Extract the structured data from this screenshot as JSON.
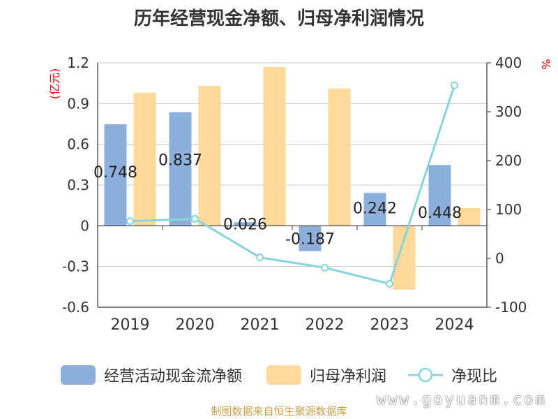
{
  "title": "历年经营现金净额、归母净利润情况",
  "source": "制图数据来自恒生聚源数据库",
  "watermark": "www.goyuanm.com",
  "chart_data": {
    "type": "bar",
    "categories": [
      "2019",
      "2020",
      "2021",
      "2022",
      "2023",
      "2024"
    ],
    "left_axis": {
      "label": "(亿元)",
      "ylim": [
        -0.6,
        1.2
      ],
      "ticks": [
        "1.2",
        "0.9",
        "0.6",
        "0.3",
        "0",
        "-0.3",
        "-0.6"
      ]
    },
    "right_axis": {
      "label": "%",
      "ylim": [
        -100,
        400
      ],
      "ticks": [
        "400",
        "300",
        "200",
        "100",
        "0",
        "-100"
      ]
    },
    "series": [
      {
        "name": "经营活动现金流净额",
        "type": "bar",
        "axis": "left",
        "color": "#8eaedc",
        "values": [
          0.748,
          0.837,
          0.026,
          -0.187,
          0.242,
          0.448
        ],
        "labels": [
          "0.748",
          "0.837",
          "0.026",
          "-0.187",
          "0.242",
          "0.448"
        ]
      },
      {
        "name": "归母净利润",
        "type": "bar",
        "axis": "left",
        "color": "#fed99b",
        "values": [
          0.98,
          1.03,
          1.17,
          1.01,
          -0.47,
          0.13
        ]
      },
      {
        "name": "净现比",
        "type": "line",
        "axis": "right",
        "color": "#88d4d8",
        "values": [
          76,
          81,
          2,
          -19,
          -52,
          354
        ]
      }
    ],
    "grid": true,
    "legend_position": "bottom"
  }
}
